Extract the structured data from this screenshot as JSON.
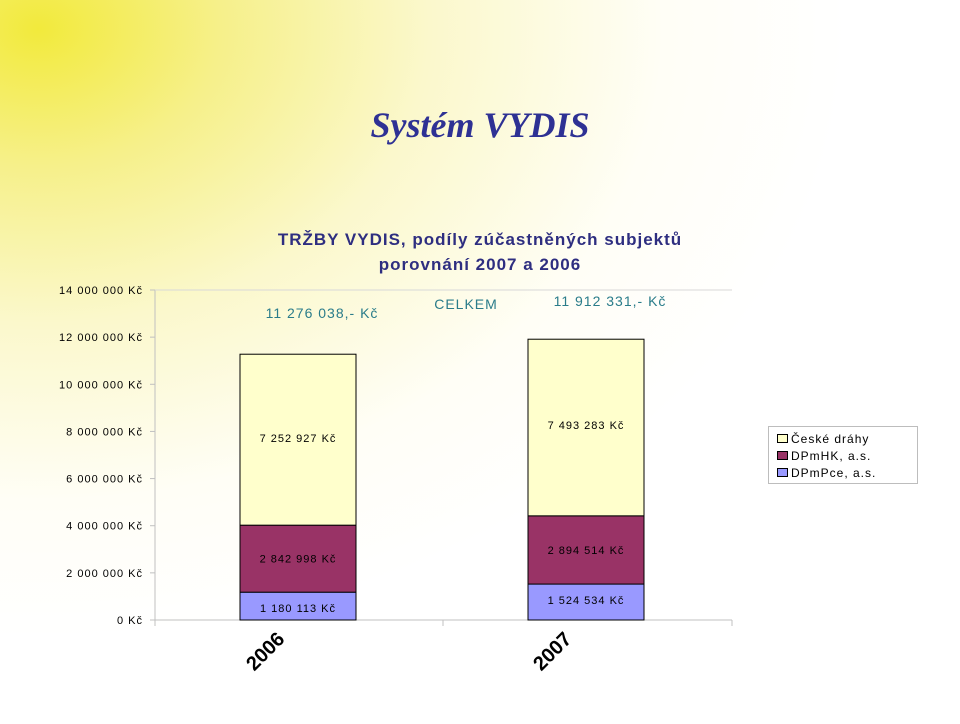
{
  "slide_title": "Systém VYDIS",
  "chart_data": {
    "type": "bar",
    "stacked": true,
    "title": "TRŽBY VYDIS, podíly zúčastněných subjektů",
    "subtitle": "porovnání 2007 a 2006",
    "categories": [
      "2006",
      "2007"
    ],
    "series": [
      {
        "name": "DPmPce, a.s.",
        "values": [
          1180113,
          1524534
        ],
        "labels": [
          "1 180 113 Kč",
          "1 524 534 Kč"
        ],
        "color": "#9999ff"
      },
      {
        "name": "DPmHK, a.s.",
        "values": [
          2842998,
          2894514
        ],
        "labels": [
          "2 842 998 Kč",
          "2 894 514 Kč"
        ],
        "color": "#993366"
      },
      {
        "name": "České dráhy",
        "values": [
          7252927,
          7493283
        ],
        "labels": [
          "7 252 927 Kč",
          "7 493 283 Kč"
        ],
        "color": "#ffffcc"
      }
    ],
    "totals": {
      "label": "CELKEM",
      "values": [
        "11 276 038,- Kč",
        "11 912 331,- Kč"
      ]
    },
    "ylim": [
      0,
      14000000
    ],
    "yticks": [
      {
        "value": 0,
        "label": "0 Kč"
      },
      {
        "value": 2000000,
        "label": "2 000 000 Kč"
      },
      {
        "value": 4000000,
        "label": "4 000 000 Kč"
      },
      {
        "value": 6000000,
        "label": "6 000 000 Kč"
      },
      {
        "value": 8000000,
        "label": "8 000 000 Kč"
      },
      {
        "value": 10000000,
        "label": "10 000 000 Kč"
      },
      {
        "value": 12000000,
        "label": "12 000 000 Kč"
      },
      {
        "value": 14000000,
        "label": "14 000 000 Kč"
      }
    ],
    "grid": false,
    "legend": {
      "position": "right",
      "order": [
        "České dráhy",
        "DPmHK, a.s.",
        "DPmPce, a.s."
      ]
    }
  }
}
